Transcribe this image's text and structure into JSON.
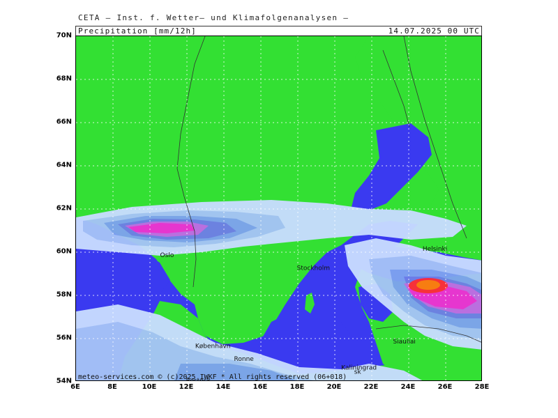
{
  "header": {
    "title": "CETA – Inst. f. Wetter– und Klimafolgenanalysen –",
    "parameter": "Precipitation [mm/12h]",
    "datetime": "14.07.2025 00 UTC"
  },
  "map": {
    "lat_labels": [
      "70N",
      "68N",
      "66N",
      "64N",
      "62N",
      "60N",
      "58N",
      "56N",
      "54N"
    ],
    "lon_labels": [
      "6E",
      "8E",
      "10E",
      "12E",
      "14E",
      "16E",
      "18E",
      "20E",
      "22E",
      "24E",
      "26E",
      "28E"
    ],
    "cities": [
      {
        "name": "Oslo",
        "lon": 10.7,
        "lat": 59.9
      },
      {
        "name": "Stockholm",
        "lon": 18.1,
        "lat": 59.3
      },
      {
        "name": "Helsinki",
        "lon": 24.9,
        "lat": 60.2
      },
      {
        "name": "København",
        "lon": 12.6,
        "lat": 55.7
      },
      {
        "name": "Ronne",
        "lon": 14.7,
        "lat": 55.1
      },
      {
        "name": "Rostock",
        "lon": 12.1,
        "lat": 54.1
      },
      {
        "name": "Kaliningrad",
        "lon": 20.5,
        "lat": 54.7
      },
      {
        "name": "Siauliai",
        "lon": 23.3,
        "lat": 55.9
      },
      {
        "name": "sk",
        "lon": 21.2,
        "lat": 54.5
      }
    ],
    "colors": {
      "sea": "#3a3af0",
      "land": "#33e033",
      "precip_light": "#c8dcff",
      "precip_low": "#a6c3f7",
      "precip_mid": "#7ea3ef",
      "precip_high": "#6f7fe8",
      "precip_violet": "#c06be6",
      "precip_magenta": "#ee30d6",
      "precip_red": "#ff2a3a",
      "precip_orange": "#ff7a10",
      "grid": "#ffffff",
      "border": "#333333"
    }
  },
  "footer": {
    "copyright": "meteo-services.com © (c)2025 IWKF * All rights reserved (06+018)"
  }
}
